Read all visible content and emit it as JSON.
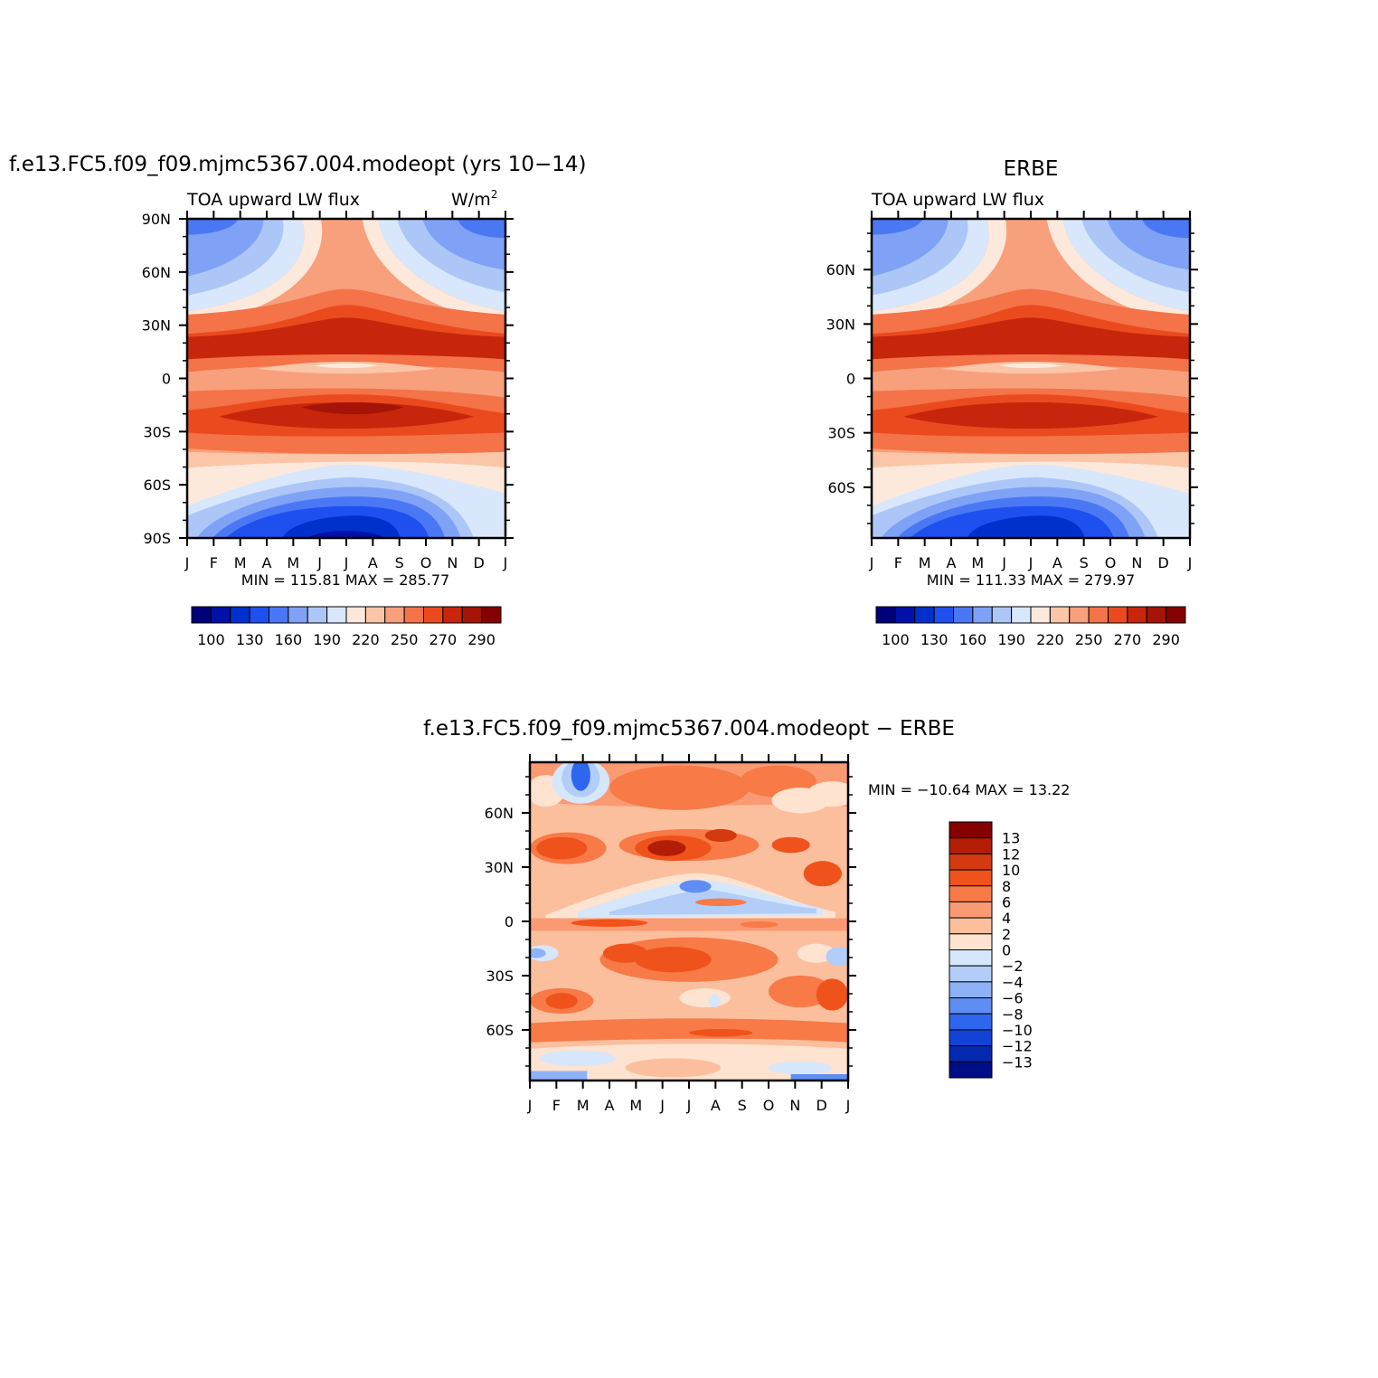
{
  "panels": {
    "model": {
      "title": "f.e13.FC5.f09_f09.mjmc5367.004.modeopt (yrs 10−14)",
      "left_label": "TOA upward LW flux",
      "units_label": "W/m",
      "units_sup": "2",
      "stats": "MIN =  115.81  MAX =  285.77"
    },
    "obs": {
      "title": "ERBE",
      "left_label": "TOA upward LW flux",
      "stats": "MIN =  111.33  MAX =  279.97"
    },
    "diff": {
      "title": "f.e13.FC5.f09_f09.mjmc5367.004.modeopt − ERBE",
      "stats": "MIN = −10.64  MAX =   13.22"
    }
  },
  "chart_data": [
    {
      "type": "heatmap",
      "id": "model",
      "title": "f.e13.FC5.f09_f09.mjmc5367.004.modeopt (yrs 10−14)",
      "x_tick_labels": [
        "J",
        "F",
        "M",
        "A",
        "M",
        "J",
        "J",
        "A",
        "S",
        "O",
        "N",
        "D",
        "J"
      ],
      "y_tick_labels": [
        {
          "lat": 90,
          "label": "90N"
        },
        {
          "lat": 60,
          "label": "60N"
        },
        {
          "lat": 30,
          "label": "30N"
        },
        {
          "lat": 0,
          "label": "0"
        },
        {
          "lat": -30,
          "label": "30S"
        },
        {
          "lat": -60,
          "label": "60S"
        },
        {
          "lat": -90,
          "label": "90S"
        }
      ],
      "xlim": [
        0,
        12
      ],
      "ylim": [
        -90,
        90
      ],
      "min": 115.81,
      "max": 285.77
    },
    {
      "type": "heatmap",
      "id": "obs",
      "title": "ERBE",
      "x_tick_labels": [
        "J",
        "F",
        "M",
        "A",
        "M",
        "J",
        "J",
        "A",
        "S",
        "O",
        "N",
        "D",
        "J"
      ],
      "y_tick_labels": [
        {
          "lat": 60,
          "label": "60N"
        },
        {
          "lat": 30,
          "label": "30N"
        },
        {
          "lat": 0,
          "label": "0"
        },
        {
          "lat": -30,
          "label": "30S"
        },
        {
          "lat": -60,
          "label": "60S"
        }
      ],
      "xlim": [
        0,
        12
      ],
      "ylim": [
        -88,
        88
      ],
      "min": 111.33,
      "max": 279.97
    },
    {
      "type": "heatmap",
      "id": "diff",
      "title": "f.e13.FC5.f09_f09.mjmc5367.004.modeopt − ERBE",
      "x_tick_labels": [
        "J",
        "F",
        "M",
        "A",
        "M",
        "J",
        "J",
        "A",
        "S",
        "O",
        "N",
        "D",
        "J"
      ],
      "y_tick_labels": [
        {
          "lat": 60,
          "label": "60N"
        },
        {
          "lat": 30,
          "label": "30N"
        },
        {
          "lat": 0,
          "label": "0"
        },
        {
          "lat": -30,
          "label": "30S"
        },
        {
          "lat": -60,
          "label": "60S"
        }
      ],
      "xlim": [
        0,
        12
      ],
      "ylim": [
        -88,
        88
      ],
      "min": -10.64,
      "max": 13.22
    }
  ],
  "colorbar_abs": {
    "colors": [
      "#00007a",
      "#0010a8",
      "#0030cc",
      "#1e50ef",
      "#4a78f5",
      "#7fa2f6",
      "#adc6f8",
      "#d8e7fb",
      "#fde9db",
      "#fbc6a8",
      "#f8a07c",
      "#f47349",
      "#eb4a1e",
      "#c7260c",
      "#a51406",
      "#850000"
    ],
    "labels": [
      "100",
      "130",
      "160",
      "190",
      "220",
      "250",
      "270",
      "290"
    ]
  },
  "colorbar_diff": {
    "colors": [
      "#850000",
      "#b31d06",
      "#d33a10",
      "#f0521b",
      "#f77a47",
      "#fa9a73",
      "#fcbf9e",
      "#fde3d0",
      "#d6e7fb",
      "#b2cdf8",
      "#8db2f6",
      "#5f8ef3",
      "#2f66ee",
      "#1243d6",
      "#0329af",
      "#000e85"
    ],
    "labels": [
      "13",
      "12",
      "10",
      "8",
      "6",
      "4",
      "2",
      "0",
      "−2",
      "−4",
      "−6",
      "−8",
      "−10",
      "−12",
      "−13"
    ]
  }
}
